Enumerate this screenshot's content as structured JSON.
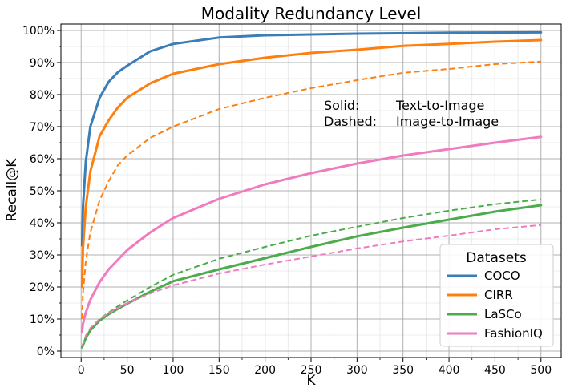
{
  "chart_data": {
    "type": "line",
    "title": "Modality Redundancy Level",
    "xlabel": "K",
    "ylabel": "Recall@K",
    "xlim": [
      -22,
      522
    ],
    "ylim": [
      -2,
      102
    ],
    "x_ticks": [
      0,
      50,
      100,
      150,
      200,
      250,
      300,
      350,
      400,
      450,
      500
    ],
    "x_tick_labels": [
      "0",
      "50",
      "100",
      "150",
      "200",
      "250",
      "300",
      "350",
      "400",
      "450",
      "500"
    ],
    "y_ticks": [
      0,
      10,
      20,
      30,
      40,
      50,
      60,
      70,
      80,
      90,
      100
    ],
    "y_tick_labels": [
      "0%",
      "10%",
      "20%",
      "30%",
      "40%",
      "50%",
      "60%",
      "70%",
      "80%",
      "90%",
      "100%"
    ],
    "grid": true,
    "legend": {
      "title": "Datasets",
      "position": "lower-right",
      "entries": [
        "COCO",
        "CIRR",
        "LaSCo",
        "FashionIQ"
      ]
    },
    "annotation": {
      "line1_key": "Solid:",
      "line1_value": "Text-to-Image",
      "line2_key": "Dashed:",
      "line2_value": "Image-to-Image"
    },
    "series": [
      {
        "name": "COCO",
        "style": "solid",
        "color": "#3a7db8",
        "x": [
          1,
          2,
          5,
          10,
          20,
          30,
          40,
          50,
          75,
          100,
          150,
          200,
          300,
          400,
          500
        ],
        "y": [
          33,
          45,
          59,
          70,
          79,
          84,
          87,
          89,
          93.5,
          95.8,
          97.8,
          98.5,
          99,
          99.3,
          99.4
        ]
      },
      {
        "name": "CIRR",
        "style": "solid",
        "color": "#ff7f0e",
        "x": [
          1,
          2,
          5,
          10,
          20,
          30,
          40,
          50,
          75,
          100,
          150,
          200,
          250,
          300,
          350,
          400,
          450,
          500
        ],
        "y": [
          20,
          32,
          45,
          56,
          67,
          72,
          76,
          79,
          83.5,
          86.5,
          89.5,
          91.5,
          93,
          94,
          95.2,
          95.8,
          96.5,
          97
        ]
      },
      {
        "name": "CIRR",
        "style": "dashed",
        "color": "#ff7f0e",
        "x": [
          1,
          2,
          5,
          10,
          20,
          30,
          40,
          50,
          75,
          100,
          150,
          200,
          250,
          300,
          350,
          400,
          450,
          500
        ],
        "y": [
          10,
          18,
          28,
          37,
          47,
          53,
          58,
          61,
          66.5,
          70,
          75.5,
          79,
          82,
          84.5,
          86.8,
          88,
          89.5,
          90.3
        ]
      },
      {
        "name": "LaSCo",
        "style": "solid",
        "color": "#4cac4c",
        "x": [
          1,
          5,
          10,
          20,
          30,
          40,
          50,
          75,
          100,
          150,
          200,
          250,
          300,
          350,
          400,
          450,
          500
        ],
        "y": [
          1.2,
          4,
          6.5,
          9.5,
          11.5,
          13.2,
          14.8,
          18.5,
          21.8,
          25.5,
          29,
          32.5,
          35.8,
          38.5,
          41,
          43.5,
          45.5
        ]
      },
      {
        "name": "LaSCo",
        "style": "dashed",
        "color": "#4cac4c",
        "x": [
          1,
          5,
          10,
          20,
          30,
          40,
          50,
          75,
          100,
          150,
          200,
          250,
          300,
          350,
          400,
          450,
          500
        ],
        "y": [
          1.5,
          4.5,
          7,
          10,
          12,
          14,
          15.8,
          20,
          23.8,
          28.8,
          32.5,
          36,
          38.8,
          41.5,
          43.8,
          45.8,
          47.3
        ]
      },
      {
        "name": "FashionIQ",
        "style": "solid",
        "color": "#f07cc0",
        "x": [
          1,
          2,
          5,
          10,
          20,
          30,
          40,
          50,
          75,
          100,
          150,
          200,
          250,
          300,
          350,
          400,
          450,
          500
        ],
        "y": [
          6,
          8.5,
          12,
          16,
          21.5,
          25.5,
          28.5,
          31.5,
          37,
          41.5,
          47.5,
          52,
          55.5,
          58.5,
          61,
          63,
          65,
          66.8
        ]
      },
      {
        "name": "FashionIQ",
        "style": "dashed",
        "color": "#f07cc0",
        "x": [
          1,
          5,
          10,
          20,
          30,
          40,
          50,
          75,
          100,
          150,
          200,
          250,
          300,
          350,
          400,
          450,
          500
        ],
        "y": [
          1.5,
          4.8,
          7.2,
          10,
          11.8,
          13.5,
          15,
          18,
          20.5,
          24.2,
          27,
          29.5,
          32,
          34.2,
          36,
          38,
          39.3
        ]
      }
    ]
  }
}
